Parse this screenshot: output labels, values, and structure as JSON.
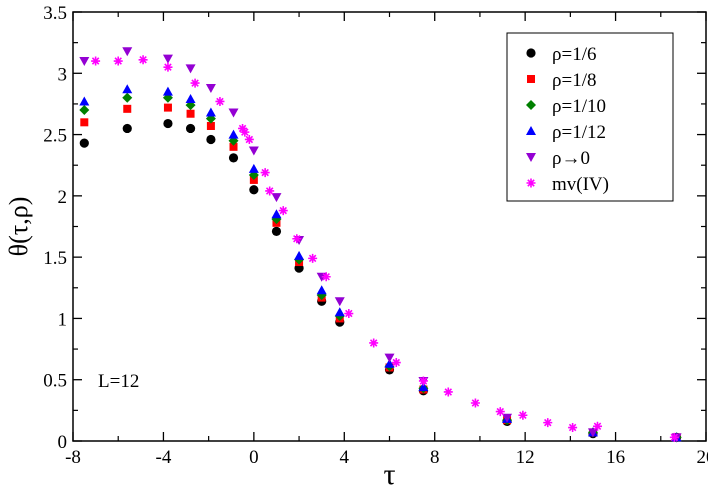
{
  "chart_data": {
    "type": "scatter",
    "title": "",
    "xlabel": "τ",
    "ylabel": "θ(τ,ρ)",
    "xlim": [
      -8,
      20
    ],
    "ylim": [
      0,
      3.5
    ],
    "xticks": [
      -8,
      -4,
      0,
      4,
      8,
      12,
      16,
      20
    ],
    "xtick_labels": [
      "-8",
      "-4",
      "0",
      "4",
      "8",
      "12",
      "16",
      "20"
    ],
    "yticks": [
      0,
      0.5,
      1,
      1.5,
      2,
      2.5,
      3,
      3.5
    ],
    "ytick_labels": [
      "0",
      "0.5",
      "1",
      "1.5",
      "2",
      "2.5",
      "3",
      "3.5"
    ],
    "grid": false,
    "legend_position": "top-right",
    "annotation": "L=12",
    "series": [
      {
        "name": "ρ=1/6",
        "marker": "circle",
        "color": "#000000",
        "points": [
          [
            -7.5,
            2.43
          ],
          [
            -5.6,
            2.55
          ],
          [
            -3.8,
            2.59
          ],
          [
            -2.8,
            2.55
          ],
          [
            -1.9,
            2.46
          ],
          [
            -0.9,
            2.31
          ],
          [
            0,
            2.05
          ],
          [
            1,
            1.71
          ],
          [
            2,
            1.41
          ],
          [
            3,
            1.14
          ],
          [
            3.8,
            0.97
          ],
          [
            6,
            0.58
          ],
          [
            7.5,
            0.41
          ],
          [
            11.2,
            0.16
          ],
          [
            15,
            0.06
          ],
          [
            18.7,
            0.03
          ]
        ]
      },
      {
        "name": "ρ=1/8",
        "marker": "square",
        "color": "#ff0000",
        "points": [
          [
            -7.5,
            2.6
          ],
          [
            -5.6,
            2.71
          ],
          [
            -3.8,
            2.72
          ],
          [
            -2.8,
            2.67
          ],
          [
            -1.9,
            2.57
          ],
          [
            -0.9,
            2.4
          ],
          [
            0,
            2.13
          ],
          [
            1,
            1.78
          ],
          [
            2,
            1.46
          ],
          [
            3,
            1.17
          ],
          [
            3.8,
            1.0
          ],
          [
            6,
            0.6
          ],
          [
            7.5,
            0.42
          ],
          [
            11.2,
            0.17
          ],
          [
            15,
            0.07
          ],
          [
            18.7,
            0.03
          ]
        ]
      },
      {
        "name": "ρ=1/10",
        "marker": "diamond",
        "color": "#008000",
        "points": [
          [
            -7.5,
            2.7
          ],
          [
            -5.6,
            2.8
          ],
          [
            -3.8,
            2.8
          ],
          [
            -2.8,
            2.74
          ],
          [
            -1.9,
            2.63
          ],
          [
            -0.9,
            2.45
          ],
          [
            0,
            2.17
          ],
          [
            1,
            1.81
          ],
          [
            2,
            1.48
          ],
          [
            3,
            1.19
          ],
          [
            3.8,
            1.02
          ],
          [
            6,
            0.61
          ],
          [
            7.5,
            0.43
          ],
          [
            11.2,
            0.17
          ],
          [
            15,
            0.07
          ],
          [
            18.7,
            0.03
          ]
        ]
      },
      {
        "name": "ρ=1/12",
        "marker": "triangle-up",
        "color": "#0000ff",
        "points": [
          [
            -7.5,
            2.77
          ],
          [
            -5.6,
            2.87
          ],
          [
            -3.8,
            2.85
          ],
          [
            -2.8,
            2.79
          ],
          [
            -1.9,
            2.68
          ],
          [
            -0.9,
            2.5
          ],
          [
            0,
            2.22
          ],
          [
            1,
            1.85
          ],
          [
            2,
            1.51
          ],
          [
            3,
            1.23
          ],
          [
            3.8,
            1.05
          ],
          [
            6,
            0.63
          ],
          [
            7.5,
            0.44
          ],
          [
            11.2,
            0.18
          ],
          [
            15,
            0.07
          ],
          [
            18.7,
            0.03
          ]
        ]
      },
      {
        "name": "ρ→0",
        "marker": "triangle-down",
        "color": "#9400d3",
        "points": [
          [
            -7.5,
            3.1
          ],
          [
            -5.6,
            3.18
          ],
          [
            -3.8,
            3.12
          ],
          [
            -2.8,
            3.04
          ],
          [
            -1.9,
            2.88
          ],
          [
            -0.9,
            2.68
          ],
          [
            0,
            2.37
          ],
          [
            1,
            1.99
          ],
          [
            2,
            1.64
          ],
          [
            3,
            1.34
          ],
          [
            3.8,
            1.14
          ],
          [
            6,
            0.68
          ],
          [
            7.5,
            0.49
          ],
          [
            11.2,
            0.19
          ],
          [
            15,
            0.07
          ],
          [
            18.7,
            0.03
          ]
        ]
      },
      {
        "name": "mv(IV)",
        "marker": "star",
        "color": "#ff00ff",
        "points": [
          [
            -7,
            3.1
          ],
          [
            -6,
            3.1
          ],
          [
            -4.9,
            3.11
          ],
          [
            -3.8,
            3.05
          ],
          [
            -2.6,
            2.92
          ],
          [
            -1.5,
            2.77
          ],
          [
            -0.5,
            2.55
          ],
          [
            -0.4,
            2.52
          ],
          [
            -0.2,
            2.46
          ],
          [
            0.5,
            2.19
          ],
          [
            0.7,
            2.04
          ],
          [
            1.3,
            1.88
          ],
          [
            1.9,
            1.65
          ],
          [
            2.6,
            1.49
          ],
          [
            3.2,
            1.34
          ],
          [
            4.2,
            1.04
          ],
          [
            5.3,
            0.8
          ],
          [
            6.3,
            0.64
          ],
          [
            7.5,
            0.49
          ],
          [
            8.6,
            0.4
          ],
          [
            9.8,
            0.31
          ],
          [
            10.9,
            0.24
          ],
          [
            11.9,
            0.21
          ],
          [
            13.0,
            0.15
          ],
          [
            14.1,
            0.11
          ],
          [
            15.2,
            0.12
          ],
          [
            18.6,
            0.03
          ]
        ]
      }
    ]
  }
}
